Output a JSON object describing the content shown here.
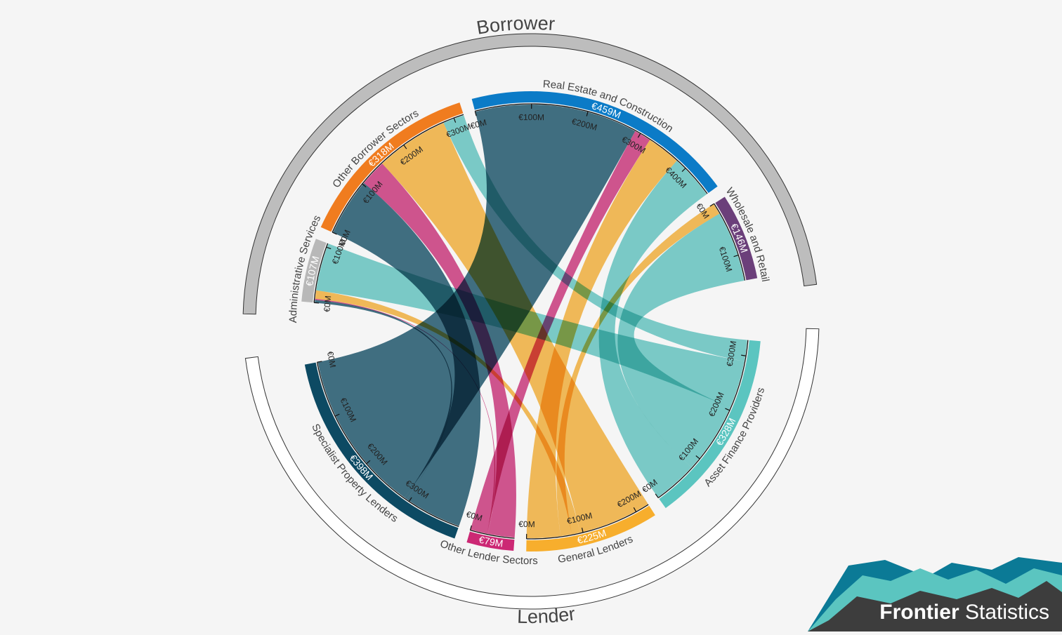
{
  "chart_data": {
    "type": "chord",
    "title": "",
    "groups": [
      {
        "key": "borrower",
        "label": "Borrower"
      },
      {
        "key": "lender",
        "label": "Lender"
      }
    ],
    "nodes": [
      {
        "id": "re",
        "label": "Real Estate and Construction",
        "group": "borrower",
        "total": 459,
        "total_label": "€459M",
        "color": "#0b7bc7",
        "ticks": [
          0,
          100,
          200,
          300,
          400
        ]
      },
      {
        "id": "wr",
        "label": "Wholesale and Retail",
        "group": "borrower",
        "total": 146,
        "total_label": "€146M",
        "color": "#6b3f7a",
        "ticks": [
          0,
          100
        ]
      },
      {
        "id": "af",
        "label": "Asset Finance Providers",
        "group": "lender",
        "total": 328,
        "total_label": "€328M",
        "color": "#5bc5c0",
        "ticks": [
          0,
          100,
          200,
          300
        ]
      },
      {
        "id": "gl",
        "label": "General Lenders",
        "group": "lender",
        "total": 225,
        "total_label": "€225M",
        "color": "#f7ae2d",
        "ticks": [
          0,
          100,
          200
        ]
      },
      {
        "id": "ol",
        "label": "Other Lender Sectors",
        "group": "lender",
        "total": 79,
        "total_label": "€79M",
        "color": "#cc2874",
        "ticks": [
          0
        ]
      },
      {
        "id": "sp",
        "label": "Specialist Property Lenders",
        "group": "lender",
        "total": 398,
        "total_label": "€398M",
        "color": "#0d4a63",
        "ticks": [
          0,
          100,
          200,
          300
        ]
      },
      {
        "id": "as",
        "label": "Administrative Services",
        "group": "borrower",
        "total": 107,
        "total_label": "€107M",
        "color": "#b8b8b8",
        "ticks": [
          0,
          100
        ]
      },
      {
        "id": "ob",
        "label": "Other Borrower Sectors",
        "group": "borrower",
        "total": 318,
        "total_label": "€318M",
        "color": "#f07c1f",
        "ticks": [
          0,
          100,
          200,
          300
        ]
      }
    ],
    "tick_unit_label": "€{v}M",
    "flows": [
      {
        "borrower": "re",
        "lender": "sp",
        "value": 290,
        "color": "#0d4a63"
      },
      {
        "borrower": "re",
        "lender": "ol",
        "value": 30,
        "color": "#cc2874"
      },
      {
        "borrower": "re",
        "lender": "gl",
        "value": 60,
        "color": "#f7ae2d"
      },
      {
        "borrower": "re",
        "lender": "af",
        "value": 79,
        "color": "#5bc5c0"
      },
      {
        "borrower": "wr",
        "lender": "gl",
        "value": 20,
        "color": "#f7ae2d"
      },
      {
        "borrower": "wr",
        "lender": "af",
        "value": 126,
        "color": "#5bc5c0"
      },
      {
        "borrower": "as",
        "lender": "sp",
        "value": 5,
        "color": "#0d4a63"
      },
      {
        "borrower": "as",
        "lender": "ol",
        "value": 2,
        "color": "#cc2874"
      },
      {
        "borrower": "as",
        "lender": "gl",
        "value": 15,
        "color": "#f7ae2d"
      },
      {
        "borrower": "as",
        "lender": "af",
        "value": 85,
        "color": "#5bc5c0"
      },
      {
        "borrower": "ob",
        "lender": "sp",
        "value": 103,
        "color": "#0d4a63"
      },
      {
        "borrower": "ob",
        "lender": "ol",
        "value": 47,
        "color": "#cc2874"
      },
      {
        "borrower": "ob",
        "lender": "gl",
        "value": 130,
        "color": "#f7ae2d"
      },
      {
        "borrower": "ob",
        "lender": "af",
        "value": 38,
        "color": "#5bc5c0"
      }
    ]
  },
  "brand": {
    "name_bold": "Frontier",
    "name_light": "Statistics"
  }
}
